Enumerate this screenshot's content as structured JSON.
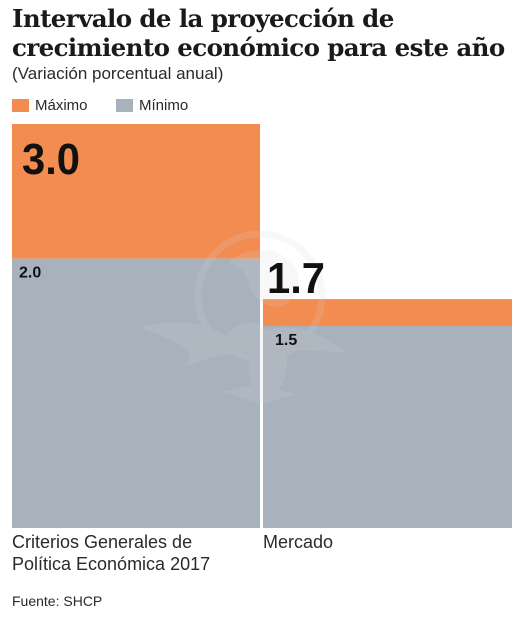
{
  "header": {
    "title": "Intervalo de la proyección de crecimiento económico para este año",
    "subtitle": "(Variación porcentual anual)"
  },
  "legend": [
    {
      "label": "Máximo",
      "color": "#f28c50"
    },
    {
      "label": "Mínimo",
      "color": "#a7b2bc"
    }
  ],
  "footer": {
    "source": "Fuente: SHCP"
  },
  "watermark": {
    "icon": "eagle-seal-icon"
  },
  "chart_data": {
    "type": "bar",
    "categories": [
      "Criterios Generales de Política Económica 2017",
      "Mercado"
    ],
    "series": [
      {
        "name": "Máximo",
        "values": [
          3.0,
          1.7
        ],
        "labels": [
          "3.0",
          "1.7"
        ],
        "color": "#f28c50"
      },
      {
        "name": "Mínimo",
        "values": [
          2.0,
          1.5
        ],
        "labels": [
          "2.0",
          "1.5"
        ],
        "color": "#a7b2bc"
      }
    ],
    "ylim": [
      0,
      3.0
    ],
    "grid": false,
    "legend_position": "top-left",
    "title": "Intervalo de la proyección de crecimiento económico para este año",
    "xlabel": "",
    "ylabel": ""
  }
}
